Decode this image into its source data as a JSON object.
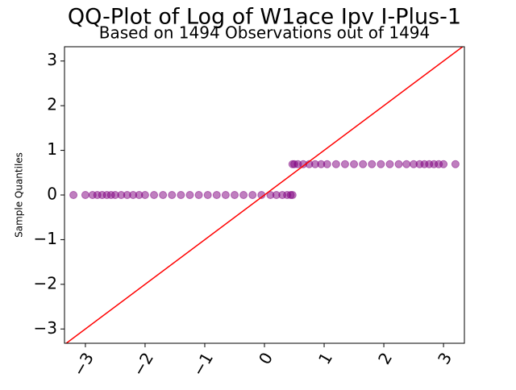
{
  "chart_data": {
    "type": "scatter",
    "title": "QQ-Plot of Log of W1ace Ipv I-Plus-1",
    "subtitle": "Based on 1494 Observations out of 1494",
    "y_label": "Sample Quantiles",
    "xlim": [
      -3.35,
      3.35
    ],
    "ylim": [
      -3.32,
      3.32
    ],
    "xticks": [
      {
        "value": -3,
        "label": "−3"
      },
      {
        "value": -2,
        "label": "−2"
      },
      {
        "value": -1,
        "label": "−1"
      },
      0,
      1,
      2,
      3
    ],
    "yticks": [
      {
        "value": -3,
        "label": "−3"
      },
      {
        "value": -2,
        "label": "−2"
      },
      {
        "value": -1,
        "label": "−1"
      },
      0,
      1,
      2,
      3
    ],
    "reference_line": {
      "slope": 1,
      "intercept": 0,
      "color": "#ff0000"
    },
    "series": [
      {
        "color": "#800080",
        "x": [
          -3.2,
          -3.0,
          -2.88,
          -2.8,
          -2.72,
          -2.64,
          -2.57,
          -2.5,
          -2.4,
          -2.3,
          -2.2,
          -2.1,
          -2.0,
          -1.85,
          -1.7,
          -1.55,
          -1.4,
          -1.25,
          -1.1,
          -0.95,
          -0.8,
          -0.65,
          -0.5,
          -0.35,
          -0.2,
          -0.05,
          0.1,
          0.2,
          0.3,
          0.38,
          0.44,
          0.47,
          0.47,
          0.5,
          0.56,
          0.65,
          0.75,
          0.85,
          0.95,
          1.05,
          1.2,
          1.35,
          1.5,
          1.65,
          1.8,
          1.95,
          2.1,
          2.25,
          2.38,
          2.5,
          2.6,
          2.68,
          2.76,
          2.84,
          2.92,
          3.0,
          3.2
        ],
        "values": [
          0,
          0,
          0,
          0,
          0,
          0,
          0,
          0,
          0,
          0,
          0,
          0,
          0,
          0,
          0,
          0,
          0,
          0,
          0,
          0,
          0,
          0,
          0,
          0,
          0,
          0,
          0,
          0,
          0,
          0,
          0,
          0,
          0.69,
          0.69,
          0.69,
          0.69,
          0.69,
          0.69,
          0.69,
          0.69,
          0.69,
          0.69,
          0.69,
          0.69,
          0.69,
          0.69,
          0.69,
          0.69,
          0.69,
          0.69,
          0.69,
          0.69,
          0.69,
          0.69,
          0.69,
          0.69,
          0.69
        ]
      }
    ]
  }
}
